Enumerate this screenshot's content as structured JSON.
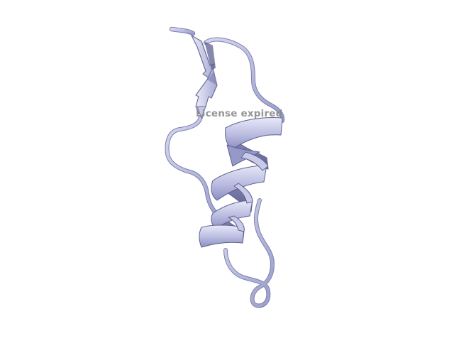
{
  "viewer": {
    "watermark_text": "License expired",
    "background_color": "#ffffff"
  },
  "structure": {
    "representation": "cartoon",
    "color": "#b8badf",
    "shade_color": "#6b6e98",
    "highlight_color": "#e6e7f7",
    "secondary_structure": [
      "coil",
      "beta-strand",
      "beta-strand",
      "coil",
      "alpha-helix",
      "coil"
    ]
  }
}
